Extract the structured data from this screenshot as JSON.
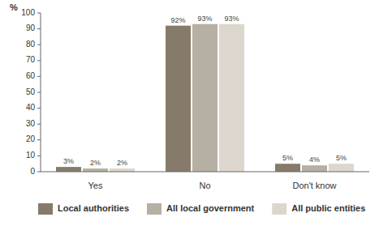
{
  "chart_data": {
    "type": "bar",
    "y_label": "%",
    "categories": [
      "Yes",
      "No",
      "Don't know"
    ],
    "series": [
      {
        "name": "Local authorities",
        "color": "#867b6b",
        "values": [
          3,
          92,
          5
        ],
        "value_labels": [
          "3%",
          "92%",
          "5%"
        ]
      },
      {
        "name": "All local government",
        "color": "#b6afa3",
        "values": [
          2,
          93,
          4
        ],
        "value_labels": [
          "2%",
          "93%",
          "4%"
        ]
      },
      {
        "name": "All public entities",
        "color": "#ddd6cd",
        "values": [
          2,
          93,
          5
        ],
        "value_labels": [
          "2%",
          "93%",
          "5%"
        ]
      }
    ],
    "ylim": [
      0,
      100
    ],
    "yticks": [
      0,
      10,
      20,
      30,
      40,
      50,
      60,
      70,
      80,
      90,
      100
    ],
    "grid": false,
    "data_labels": true,
    "legend": "bottom"
  }
}
